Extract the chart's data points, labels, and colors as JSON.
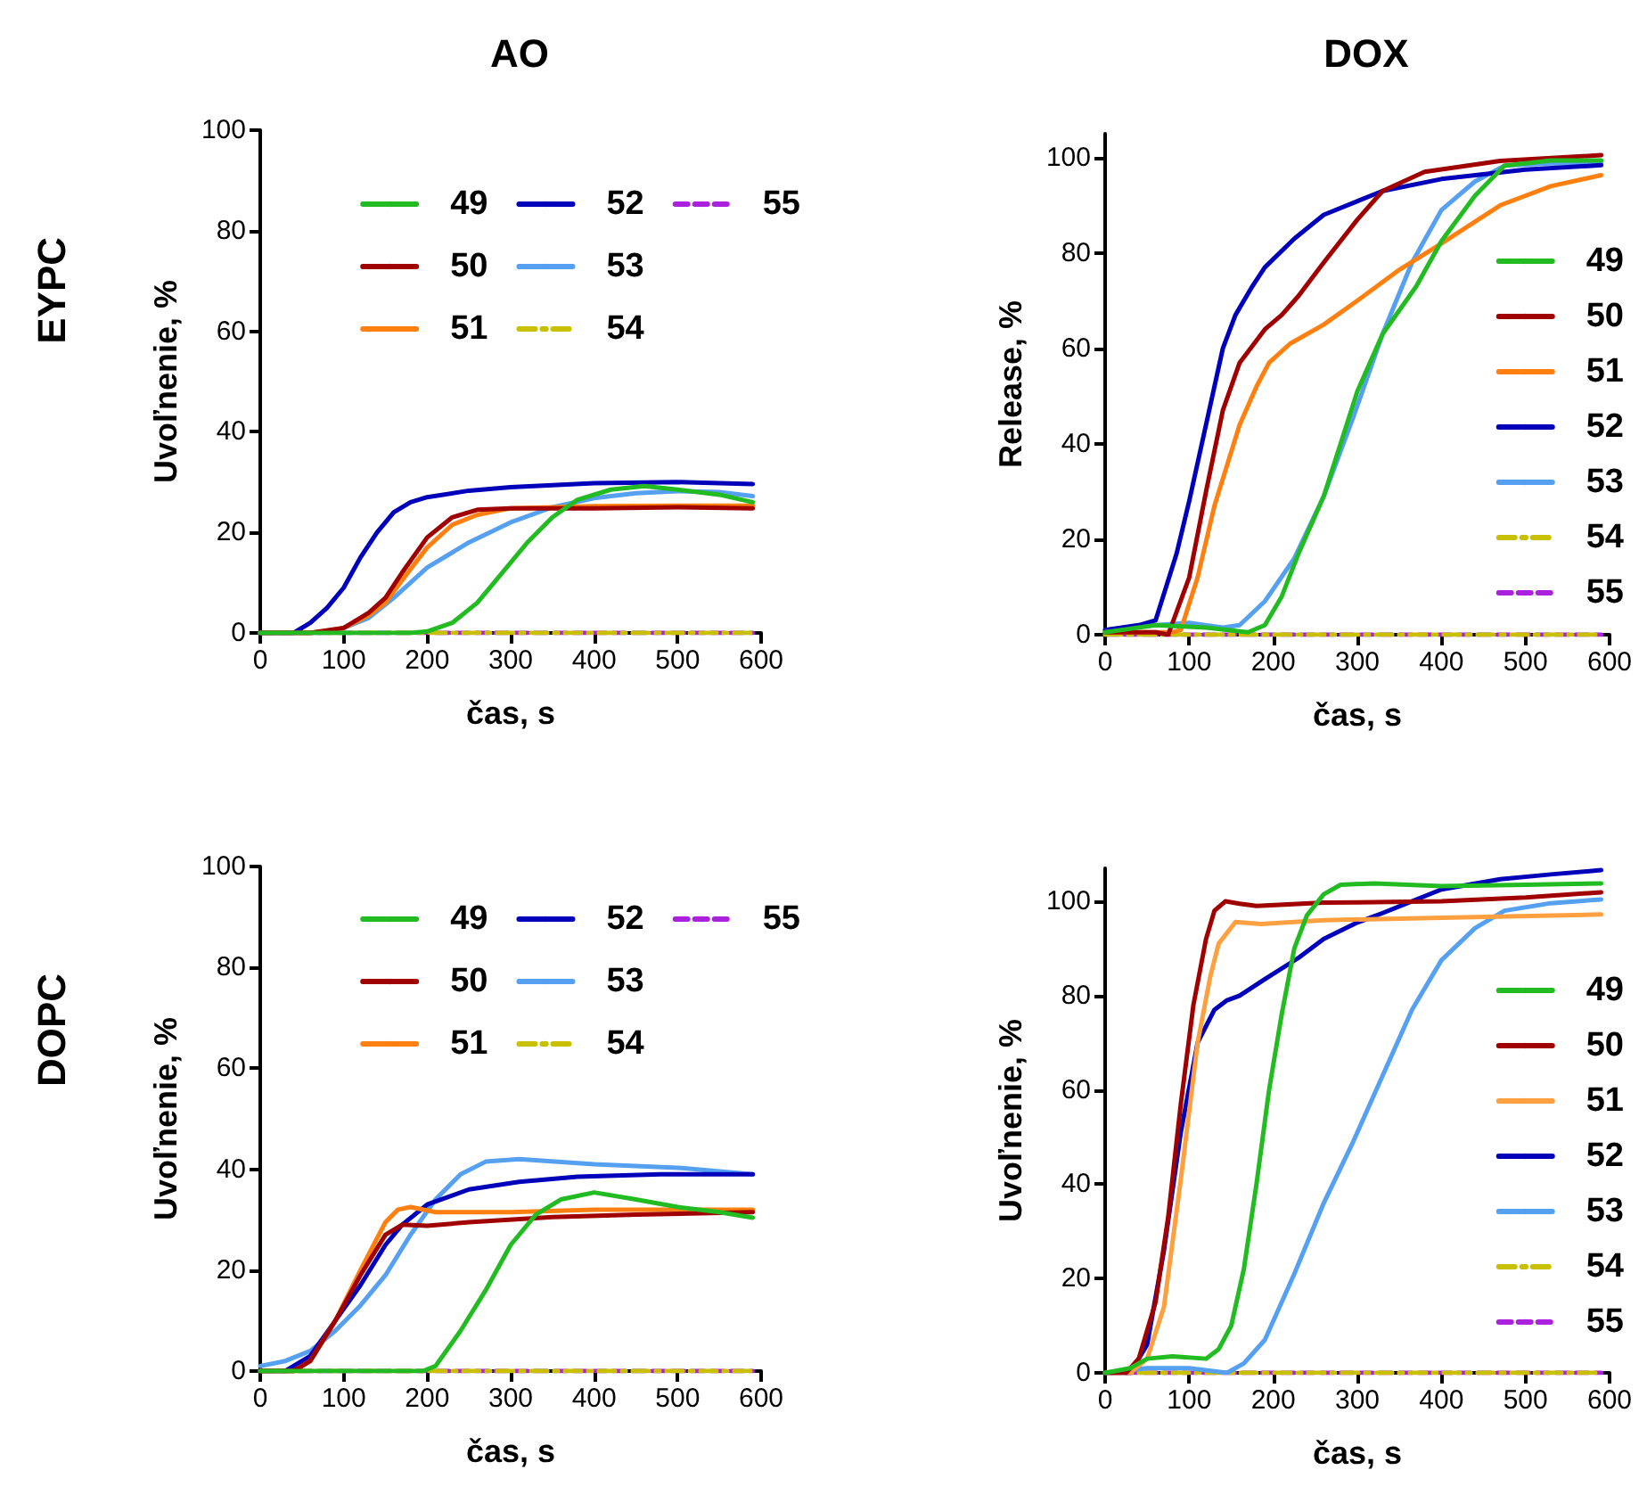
{
  "chart_data": [
    {
      "type": "line",
      "title": "AO",
      "annotations": [
        "EYPC"
      ],
      "xlabel": "čas, s",
      "ylabel": "Uvoľnenie, %",
      "xlim": [
        0,
        600
      ],
      "xticks": [
        0,
        100,
        200,
        300,
        400,
        500,
        600
      ],
      "ylim": [
        0,
        100
      ],
      "yticks": [
        0,
        20,
        40,
        60,
        80,
        100
      ],
      "grid": false,
      "legend": "top right",
      "marker": "none",
      "series": [
        {
          "name": "49",
          "color": "#22bb22",
          "line_style": "solid",
          "x": [
            0,
            180,
            200,
            230,
            260,
            290,
            320,
            350,
            380,
            420,
            460,
            500,
            550,
            590
          ],
          "values": [
            0,
            0,
            0.3,
            2,
            6,
            12,
            18,
            23,
            26.5,
            28.5,
            29.2,
            28.5,
            27.5,
            26
          ]
        },
        {
          "name": "50",
          "color": "#a00000",
          "line_style": "solid",
          "x": [
            0,
            60,
            100,
            130,
            150,
            170,
            200,
            230,
            260,
            300,
            400,
            500,
            590
          ],
          "values": [
            0,
            0,
            1,
            4,
            7,
            12,
            19,
            23,
            24.5,
            24.8,
            24.8,
            25,
            24.8
          ]
        },
        {
          "name": "51",
          "color": "#ff8010",
          "line_style": "solid",
          "x": [
            0,
            60,
            100,
            130,
            150,
            170,
            200,
            230,
            260,
            300,
            400,
            500,
            590
          ],
          "values": [
            0,
            0,
            1,
            3.5,
            6,
            10.5,
            17,
            21.5,
            23.5,
            24.8,
            25.2,
            25.3,
            25.3
          ]
        },
        {
          "name": "52",
          "color": "#0000bb",
          "line_style": "solid",
          "x": [
            0,
            40,
            60,
            80,
            100,
            120,
            140,
            160,
            180,
            200,
            250,
            300,
            400,
            500,
            590
          ],
          "values": [
            0,
            0,
            2,
            5,
            9,
            15,
            20,
            24,
            26,
            27,
            28.3,
            29,
            29.8,
            30,
            29.6
          ]
        },
        {
          "name": "53",
          "color": "#55a0f0",
          "line_style": "solid",
          "x": [
            0,
            70,
            100,
            130,
            160,
            200,
            250,
            300,
            350,
            400,
            450,
            500,
            550,
            590
          ],
          "values": [
            0,
            0,
            1,
            3,
            7,
            13,
            18,
            22,
            25,
            26.8,
            27.8,
            28.2,
            28,
            27.2
          ]
        },
        {
          "name": "54",
          "color": "#c8c000",
          "line_style": "dashdot",
          "x": [
            0,
            300,
            590
          ],
          "values": [
            0,
            0,
            0
          ]
        },
        {
          "name": "55",
          "color": "#aa22dd",
          "line_style": "dashed",
          "x": [
            0,
            300,
            590
          ],
          "values": [
            0,
            0,
            0
          ]
        }
      ]
    },
    {
      "type": "line",
      "title": "DOX",
      "xlabel": "čas, s",
      "ylabel": "Release, %",
      "xlim": [
        0,
        600
      ],
      "xticks": [
        0,
        100,
        200,
        300,
        400,
        500,
        600
      ],
      "ylim": [
        0,
        105
      ],
      "yticks": [
        0,
        20,
        40,
        60,
        80,
        100
      ],
      "grid": false,
      "legend": "right",
      "marker": "none",
      "series": [
        {
          "name": "49",
          "color": "#22bb22",
          "line_style": "solid",
          "x": [
            0,
            60,
            120,
            170,
            190,
            210,
            230,
            260,
            280,
            300,
            330,
            370,
            400,
            440,
            475,
            530,
            590
          ],
          "values": [
            0.5,
            2,
            1.5,
            0.5,
            2,
            8,
            17,
            29,
            40,
            51,
            63,
            73,
            82.5,
            92,
            98.3,
            99.4,
            99.4
          ]
        },
        {
          "name": "50",
          "color": "#a00000",
          "line_style": "solid",
          "x": [
            0,
            60,
            75,
            100,
            120,
            140,
            160,
            190,
            210,
            230,
            260,
            300,
            330,
            380,
            470,
            590
          ],
          "values": [
            0.5,
            0.5,
            0,
            12,
            30,
            47,
            57,
            64,
            67,
            71,
            78,
            87,
            93,
            97,
            99.3,
            100.5
          ]
        },
        {
          "name": "51",
          "color": "#ff8010",
          "line_style": "solid",
          "x": [
            0,
            80,
            90,
            110,
            130,
            160,
            180,
            195,
            220,
            260,
            300,
            350,
            400,
            470,
            530,
            590
          ],
          "values": [
            0.5,
            0.5,
            1,
            12,
            27,
            44,
            52,
            57,
            61,
            65,
            70,
            76.5,
            82,
            90,
            94,
            96.3
          ]
        },
        {
          "name": "52",
          "color": "#0000bb",
          "line_style": "solid",
          "x": [
            0,
            40,
            60,
            85,
            100,
            120,
            140,
            155,
            175,
            190,
            225,
            260,
            330,
            400,
            500,
            590
          ],
          "values": [
            1,
            2,
            3,
            17,
            28,
            44,
            60,
            67,
            73,
            77,
            83,
            88,
            93,
            95.5,
            97.5,
            98.4
          ]
        },
        {
          "name": "53",
          "color": "#55a0f0",
          "line_style": "solid",
          "x": [
            0,
            60,
            100,
            140,
            160,
            190,
            225,
            260,
            295,
            330,
            365,
            400,
            440,
            475,
            530,
            590
          ],
          "values": [
            1,
            2,
            2.5,
            1.5,
            2,
            7,
            16,
            29,
            45.5,
            63,
            78,
            89,
            95,
            98.3,
            98.8,
            98.8
          ]
        },
        {
          "name": "54",
          "color": "#c8c000",
          "line_style": "dashdot",
          "x": [
            0,
            300,
            590
          ],
          "values": [
            0,
            0,
            0
          ]
        },
        {
          "name": "55",
          "color": "#aa22dd",
          "line_style": "dashed",
          "x": [
            0,
            300,
            590
          ],
          "values": [
            0,
            0,
            0
          ]
        }
      ]
    },
    {
      "type": "line",
      "annotations": [
        "DOPC"
      ],
      "xlabel": "čas, s",
      "ylabel": "Uvoľnenie, %",
      "xlim": [
        0,
        600
      ],
      "xticks": [
        0,
        100,
        200,
        300,
        400,
        500,
        600
      ],
      "ylim": [
        0,
        100
      ],
      "yticks": [
        0,
        20,
        40,
        60,
        80,
        100
      ],
      "grid": false,
      "legend": "top right",
      "marker": "none",
      "series": [
        {
          "name": "49",
          "color": "#22bb22",
          "line_style": "solid",
          "x": [
            0,
            195,
            210,
            240,
            270,
            300,
            330,
            360,
            400,
            450,
            500,
            550,
            590
          ],
          "values": [
            0,
            0,
            1,
            8,
            16,
            25,
            31,
            34,
            35.4,
            34,
            32.5,
            31.5,
            30.4
          ]
        },
        {
          "name": "50",
          "color": "#a00000",
          "line_style": "solid",
          "x": [
            0,
            40,
            60,
            90,
            120,
            150,
            170,
            200,
            250,
            350,
            450,
            590
          ],
          "values": [
            0,
            0,
            2,
            10,
            19,
            27,
            29,
            28.8,
            29.5,
            30.5,
            31,
            31.5
          ]
        },
        {
          "name": "51",
          "color": "#ff8010",
          "line_style": "solid",
          "x": [
            0,
            40,
            60,
            90,
            120,
            150,
            165,
            180,
            210,
            300,
            400,
            500,
            590
          ],
          "values": [
            0,
            0,
            2,
            10,
            20,
            29.5,
            32,
            32.5,
            31.5,
            31.5,
            32,
            32,
            32
          ]
        },
        {
          "name": "52",
          "color": "#0000bb",
          "line_style": "solid",
          "x": [
            0,
            30,
            60,
            90,
            120,
            150,
            170,
            200,
            250,
            310,
            380,
            480,
            590
          ],
          "values": [
            0,
            0,
            3,
            10,
            17,
            25,
            29,
            33,
            36,
            37.5,
            38.5,
            39,
            39
          ]
        },
        {
          "name": "53",
          "color": "#55a0f0",
          "line_style": "solid",
          "x": [
            0,
            30,
            60,
            90,
            120,
            150,
            180,
            210,
            240,
            270,
            310,
            400,
            500,
            590
          ],
          "values": [
            1,
            2,
            4,
            8,
            13,
            19,
            27,
            34,
            39,
            41.5,
            42,
            41,
            40.3,
            39
          ]
        },
        {
          "name": "54",
          "color": "#c8c000",
          "line_style": "dashdot",
          "x": [
            0,
            300,
            590
          ],
          "values": [
            0,
            0,
            0
          ]
        },
        {
          "name": "55",
          "color": "#aa22dd",
          "line_style": "dashed",
          "x": [
            0,
            300,
            590
          ],
          "values": [
            0,
            0,
            0
          ]
        }
      ]
    },
    {
      "type": "line",
      "xlabel": "čas, s",
      "ylabel": "Uvoľnenie, %",
      "xlim": [
        0,
        600
      ],
      "xticks": [
        0,
        100,
        200,
        300,
        400,
        500,
        600
      ],
      "ylim": [
        0,
        107
      ],
      "yticks": [
        0,
        20,
        40,
        60,
        80,
        100
      ],
      "grid": false,
      "legend": "right",
      "marker": "none",
      "series": [
        {
          "name": "49",
          "color": "#22bb22",
          "line_style": "solid",
          "x": [
            0,
            30,
            50,
            80,
            120,
            135,
            150,
            165,
            180,
            195,
            210,
            225,
            240,
            260,
            280,
            320,
            400,
            500,
            590
          ],
          "values": [
            0,
            1,
            3,
            3.5,
            3,
            5,
            10,
            22,
            40,
            60,
            76,
            90,
            97,
            101.5,
            103.5,
            103.8,
            103.2,
            103.5,
            103.8
          ]
        },
        {
          "name": "50",
          "color": "#a00000",
          "line_style": "solid",
          "x": [
            0,
            25,
            40,
            60,
            75,
            90,
            105,
            120,
            130,
            143,
            160,
            180,
            260,
            400,
            500,
            590
          ],
          "values": [
            0,
            0,
            3,
            15,
            33,
            57,
            78,
            92,
            98,
            100,
            99.5,
            99,
            99.7,
            100,
            100.8,
            101.9
          ]
        },
        {
          "name": "51",
          "color": "#ffa040",
          "line_style": "solid",
          "x": [
            0,
            30,
            50,
            70,
            90,
            110,
            125,
            135,
            155,
            185,
            260,
            400,
            590
          ],
          "values": [
            0,
            0,
            3,
            14,
            41,
            70,
            84,
            91,
            95.6,
            95.2,
            96,
            96.5,
            97.2
          ]
        },
        {
          "name": "52",
          "color": "#0000bb",
          "line_style": "solid",
          "x": [
            0,
            30,
            50,
            70,
            90,
            110,
            130,
            145,
            160,
            190,
            230,
            260,
            300,
            330,
            400,
            470,
            530,
            590
          ],
          "values": [
            0,
            0,
            6,
            26,
            51,
            70,
            77,
            79,
            80,
            83.5,
            88,
            92,
            95.5,
            97.5,
            102.5,
            104.7,
            105.7,
            106.6
          ]
        },
        {
          "name": "53",
          "color": "#55a0f0",
          "line_style": "solid",
          "x": [
            0,
            50,
            100,
            145,
            165,
            190,
            225,
            260,
            295,
            330,
            365,
            400,
            440,
            475,
            530,
            590
          ],
          "values": [
            0,
            1,
            1,
            0,
            2,
            7,
            21,
            36,
            49,
            63,
            77,
            87.5,
            94.3,
            98,
            99.6,
            100.4
          ]
        },
        {
          "name": "54",
          "color": "#c8c000",
          "line_style": "dashdot",
          "x": [
            0,
            300,
            590
          ],
          "values": [
            0,
            0,
            0
          ]
        },
        {
          "name": "55",
          "color": "#aa22dd",
          "line_style": "dashed",
          "x": [
            0,
            300,
            590
          ],
          "values": [
            0,
            0,
            0
          ]
        }
      ]
    }
  ]
}
